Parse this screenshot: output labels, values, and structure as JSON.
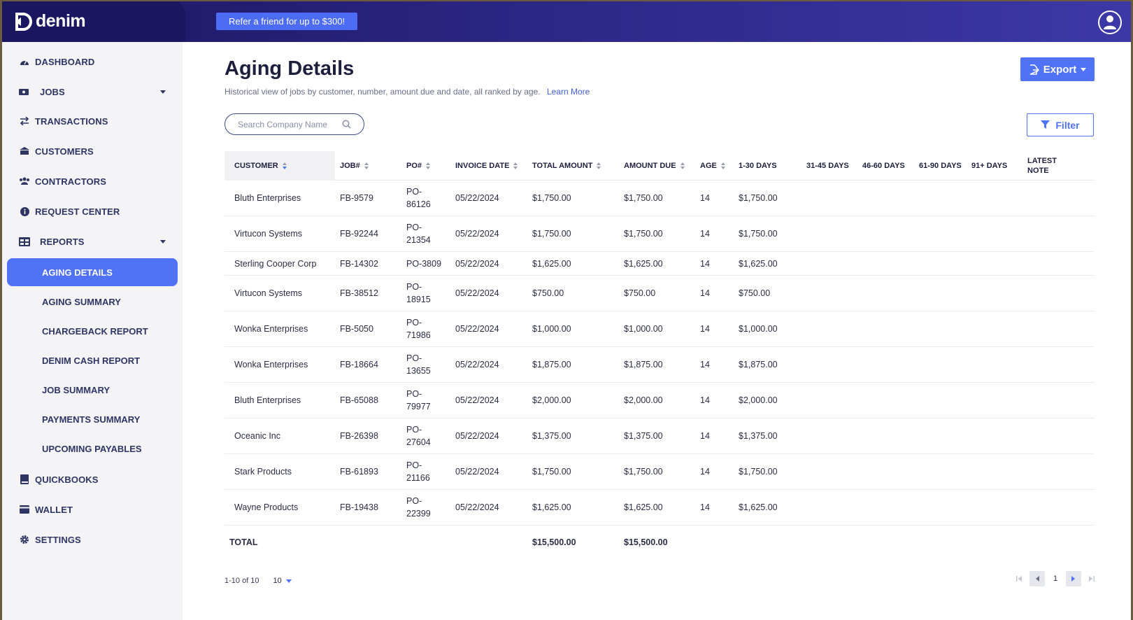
{
  "header": {
    "brand": "denim",
    "refer_label": "Refer a friend for up to $300!"
  },
  "sidebar": {
    "items": [
      {
        "label": "DASHBOARD",
        "icon": "dashboard-icon"
      },
      {
        "label": "JOBS",
        "icon": "jobs-icon",
        "expandable": true
      },
      {
        "label": "TRANSACTIONS",
        "icon": "transactions-icon"
      },
      {
        "label": "CUSTOMERS",
        "icon": "customers-icon"
      },
      {
        "label": "CONTRACTORS",
        "icon": "contractors-icon"
      },
      {
        "label": "REQUEST CENTER",
        "icon": "info-icon"
      },
      {
        "label": "REPORTS",
        "icon": "reports-icon",
        "expandable": true
      },
      {
        "label": "QUICKBOOKS",
        "icon": "book-icon"
      },
      {
        "label": "WALLET",
        "icon": "wallet-icon"
      },
      {
        "label": "SETTINGS",
        "icon": "gear-icon"
      }
    ],
    "reports_sub": [
      {
        "label": "AGING DETAILS",
        "active": true
      },
      {
        "label": "AGING SUMMARY"
      },
      {
        "label": "CHARGEBACK REPORT"
      },
      {
        "label": "DENIM CASH REPORT"
      },
      {
        "label": "JOB SUMMARY"
      },
      {
        "label": "PAYMENTS SUMMARY"
      },
      {
        "label": "UPCOMING PAYABLES"
      }
    ]
  },
  "page": {
    "title": "Aging Details",
    "subtitle": "Historical view of jobs by customer, number, amount due and date, all ranked by age.",
    "learn_more": "Learn More",
    "export_label": "Export",
    "filter_label": "Filter",
    "search_placeholder": "Search Company Name"
  },
  "table": {
    "columns": [
      "CUSTOMER",
      "JOB#",
      "PO#",
      "INVOICE DATE",
      "TOTAL AMOUNT",
      "AMOUNT DUE",
      "AGE",
      "1-30 DAYS",
      "31-45 DAYS",
      "46-60 DAYS",
      "61-90 DAYS",
      "91+ DAYS",
      "LATEST",
      "NOTE"
    ],
    "rows": [
      {
        "customer": "Bluth Enterprises",
        "job": "FB-9579",
        "po1": "PO-",
        "po2": "86126",
        "date": "05/22/2024",
        "total": "$1,750.00",
        "due": "$1,750.00",
        "age": "14",
        "d1_30": "$1,750.00"
      },
      {
        "customer": "Virtucon Systems",
        "job": "FB-92244",
        "po1": "PO-",
        "po2": "21354",
        "date": "05/22/2024",
        "total": "$1,750.00",
        "due": "$1,750.00",
        "age": "14",
        "d1_30": "$1,750.00"
      },
      {
        "customer": "Sterling Cooper Corp",
        "job": "FB-14302",
        "po1": "PO-3809",
        "po2": "",
        "date": "05/22/2024",
        "total": "$1,625.00",
        "due": "$1,625.00",
        "age": "14",
        "d1_30": "$1,625.00"
      },
      {
        "customer": "Virtucon Systems",
        "job": "FB-38512",
        "po1": "PO-",
        "po2": "18915",
        "date": "05/22/2024",
        "total": "$750.00",
        "due": "$750.00",
        "age": "14",
        "d1_30": "$750.00"
      },
      {
        "customer": "Wonka Enterprises",
        "job": "FB-5050",
        "po1": "PO-",
        "po2": "71986",
        "date": "05/22/2024",
        "total": "$1,000.00",
        "due": "$1,000.00",
        "age": "14",
        "d1_30": "$1,000.00"
      },
      {
        "customer": "Wonka Enterprises",
        "job": "FB-18664",
        "po1": "PO-",
        "po2": "13655",
        "date": "05/22/2024",
        "total": "$1,875.00",
        "due": "$1,875.00",
        "age": "14",
        "d1_30": "$1,875.00"
      },
      {
        "customer": "Bluth Enterprises",
        "job": "FB-65088",
        "po1": "PO-",
        "po2": "79977",
        "date": "05/22/2024",
        "total": "$2,000.00",
        "due": "$2,000.00",
        "age": "14",
        "d1_30": "$2,000.00"
      },
      {
        "customer": "Oceanic Inc",
        "job": "FB-26398",
        "po1": "PO-",
        "po2": "27604",
        "date": "05/22/2024",
        "total": "$1,375.00",
        "due": "$1,375.00",
        "age": "14",
        "d1_30": "$1,375.00"
      },
      {
        "customer": "Stark Products",
        "job": "FB-61893",
        "po1": "PO-",
        "po2": "21166",
        "date": "05/22/2024",
        "total": "$1,750.00",
        "due": "$1,750.00",
        "age": "14",
        "d1_30": "$1,750.00"
      },
      {
        "customer": "Wayne Products",
        "job": "FB-19438",
        "po1": "PO-",
        "po2": "22399",
        "date": "05/22/2024",
        "total": "$1,625.00",
        "due": "$1,625.00",
        "age": "14",
        "d1_30": "$1,625.00"
      }
    ],
    "total_label": "TOTAL",
    "total_amount": "$15,500.00",
    "total_due": "$15,500.00"
  },
  "pagination": {
    "range": "1-10 of 10",
    "page_size": "10",
    "current_page": "1"
  },
  "colors": {
    "accent": "#4f72f6",
    "header_dark": "#1c1760"
  }
}
